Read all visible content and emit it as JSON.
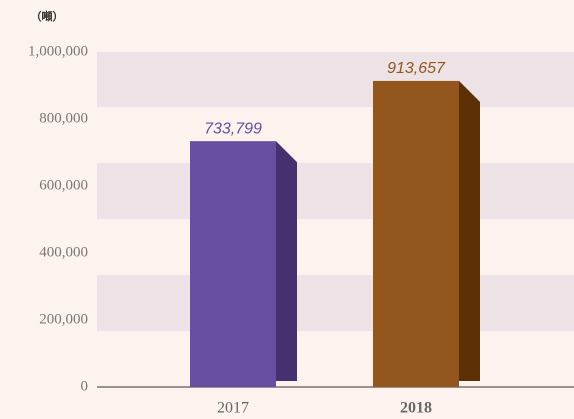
{
  "chart_data": {
    "type": "bar",
    "unit_label": "（噸）",
    "categories": [
      "2017",
      "2018"
    ],
    "values": [
      733799,
      913657
    ],
    "value_labels": [
      "733,799",
      "913,657"
    ],
    "colors": [
      "#674ea0",
      "#93561c"
    ],
    "side_colors": [
      "#47306f",
      "#5e3005"
    ],
    "ylim": [
      0,
      1000000
    ],
    "yticks": [
      0,
      {
        "value": 200000,
        "label": "200,000"
      },
      {
        "value": 400000,
        "label": "400,000"
      },
      {
        "value": 600000,
        "label": "600,000"
      },
      {
        "value": 800000,
        "label": "800,000"
      },
      {
        "value": 1000000,
        "label": "1,000,000"
      }
    ]
  }
}
